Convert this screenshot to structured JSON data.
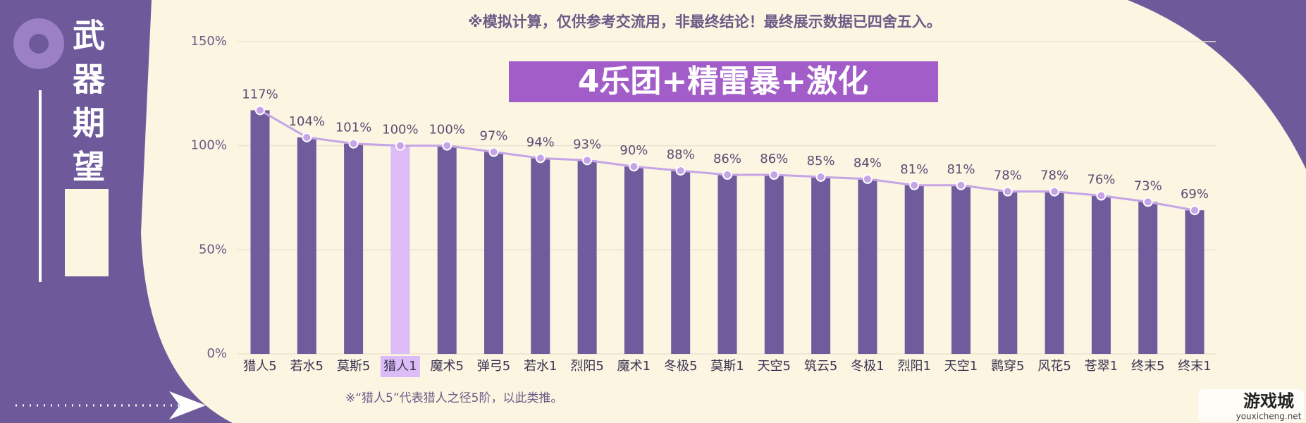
{
  "chart_data": {
    "type": "bar",
    "note": "※模拟计算，仅供参考交流用，非最终结论！最终展示数据已四舍五入。",
    "title": "4乐团+精雷暴+激化",
    "side_title": "武器期望",
    "footnote": "※“猎人5”代表猎人之径5阶，以此类推。",
    "categories": [
      "猎人5",
      "若水5",
      "莫斯5",
      "猎人1",
      "魔术5",
      "弹弓5",
      "若水1",
      "烈阳5",
      "魔术1",
      "冬极5",
      "莫斯1",
      "天空5",
      "筑云5",
      "冬极1",
      "烈阳1",
      "天空1",
      "鹮穿5",
      "风花5",
      "苍翠1",
      "终末5",
      "终末1"
    ],
    "values": [
      117,
      104,
      101,
      100,
      100,
      97,
      94,
      93,
      90,
      88,
      86,
      86,
      85,
      84,
      81,
      81,
      78,
      78,
      76,
      73,
      69
    ],
    "value_labels": [
      "117%",
      "104%",
      "101%",
      "100%",
      "100%",
      "97%",
      "94%",
      "93%",
      "90%",
      "88%",
      "86%",
      "86%",
      "85%",
      "84%",
      "81%",
      "81%",
      "78%",
      "78%",
      "76%",
      "73%",
      "69%"
    ],
    "colors": [
      "#6e5c9c",
      "#6e5c9c",
      "#6e5c9c",
      "#dcbcf6",
      "#6e5c9c",
      "#6e5c9c",
      "#6e5c9c",
      "#6e5c9c",
      "#6e5c9c",
      "#6e5c9c",
      "#6e5c9c",
      "#6e5c9c",
      "#6e5c9c",
      "#6e5c9c",
      "#6e5c9c",
      "#6e5c9c",
      "#6e5c9c",
      "#6e5c9c",
      "#6e5c9c",
      "#6e5c9c",
      "#6e5c9c"
    ],
    "line_color": "#c6a4e6",
    "ylim": [
      0,
      150
    ],
    "yticks": [
      {
        "value": 0,
        "label": "0%"
      },
      {
        "value": 50,
        "label": "50%"
      },
      {
        "value": 100,
        "label": "100%"
      },
      {
        "value": 150,
        "label": "150%"
      }
    ],
    "grid": true
  },
  "watermark": {
    "name": "游戏城",
    "url": "youxicheng.net"
  }
}
